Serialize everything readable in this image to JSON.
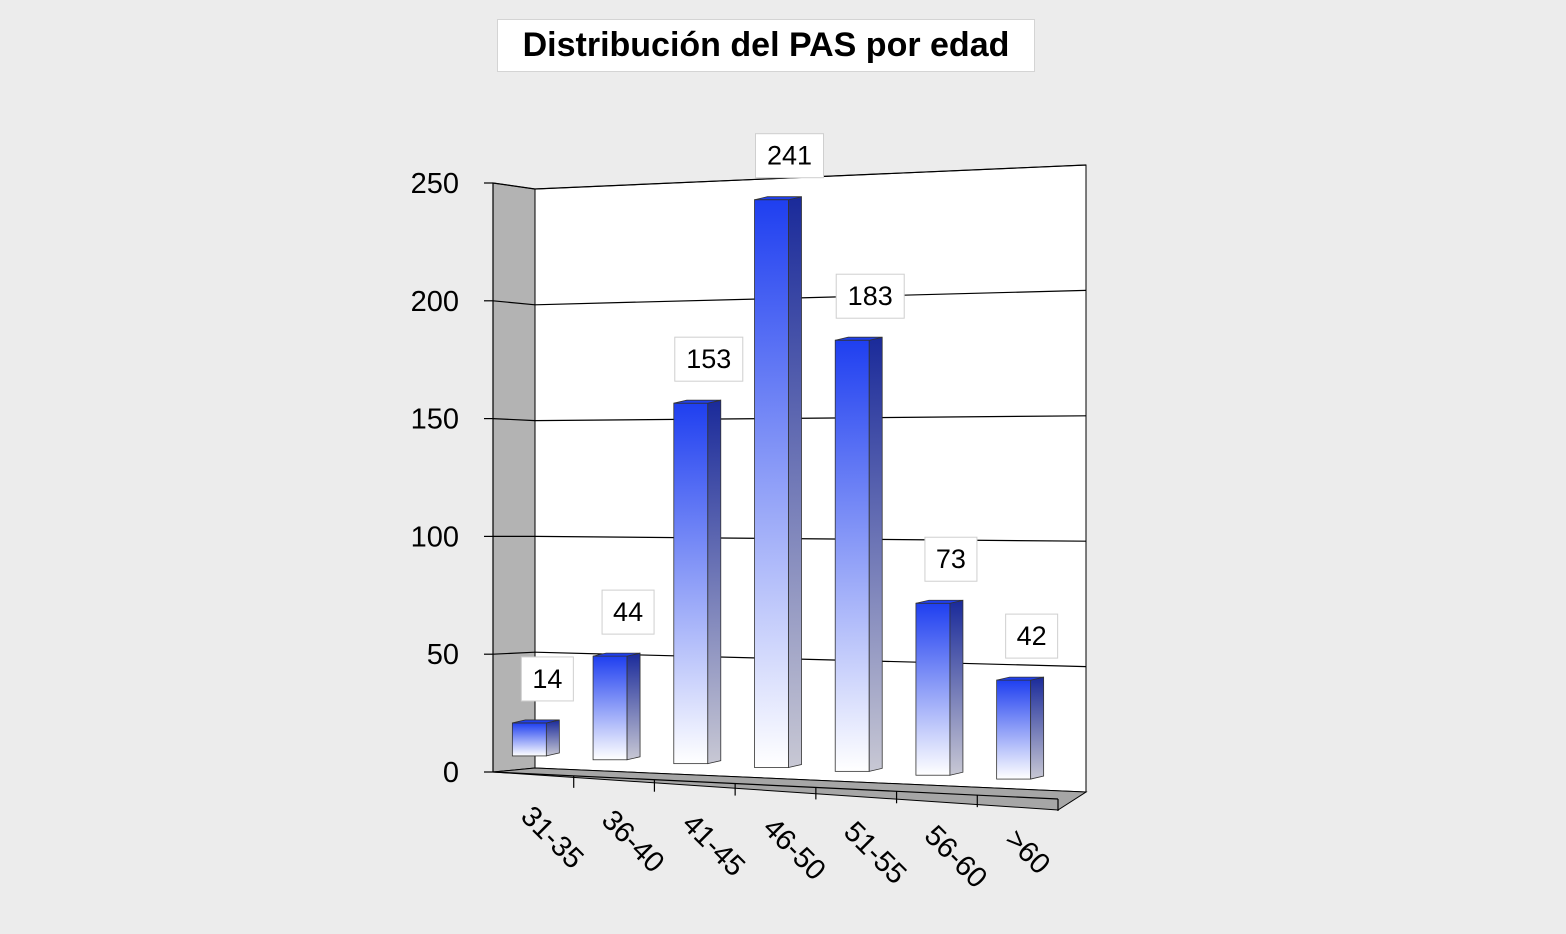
{
  "chart_data": {
    "type": "bar",
    "title": "Distribución del PAS por edad",
    "xlabel": "",
    "ylabel": "",
    "categories": [
      "31-35",
      "36-40",
      "41-45",
      "46-50",
      "51-55",
      "56-60",
      ">60"
    ],
    "values": [
      14,
      44,
      153,
      241,
      183,
      73,
      42
    ],
    "ylim": [
      0,
      250
    ],
    "yticks": [
      0,
      50,
      100,
      150,
      200,
      250
    ],
    "grid": true,
    "legend": "none",
    "style": "3d-column",
    "colors": {
      "bar_top": "#1f3ff0",
      "bar_bottom": "#ffffff",
      "bar_side": "#1a2a9a",
      "wall_left": "#b3b3b3",
      "floor": "#a6a6a6",
      "plot_back": "#ffffff",
      "background": "#ececec"
    }
  }
}
